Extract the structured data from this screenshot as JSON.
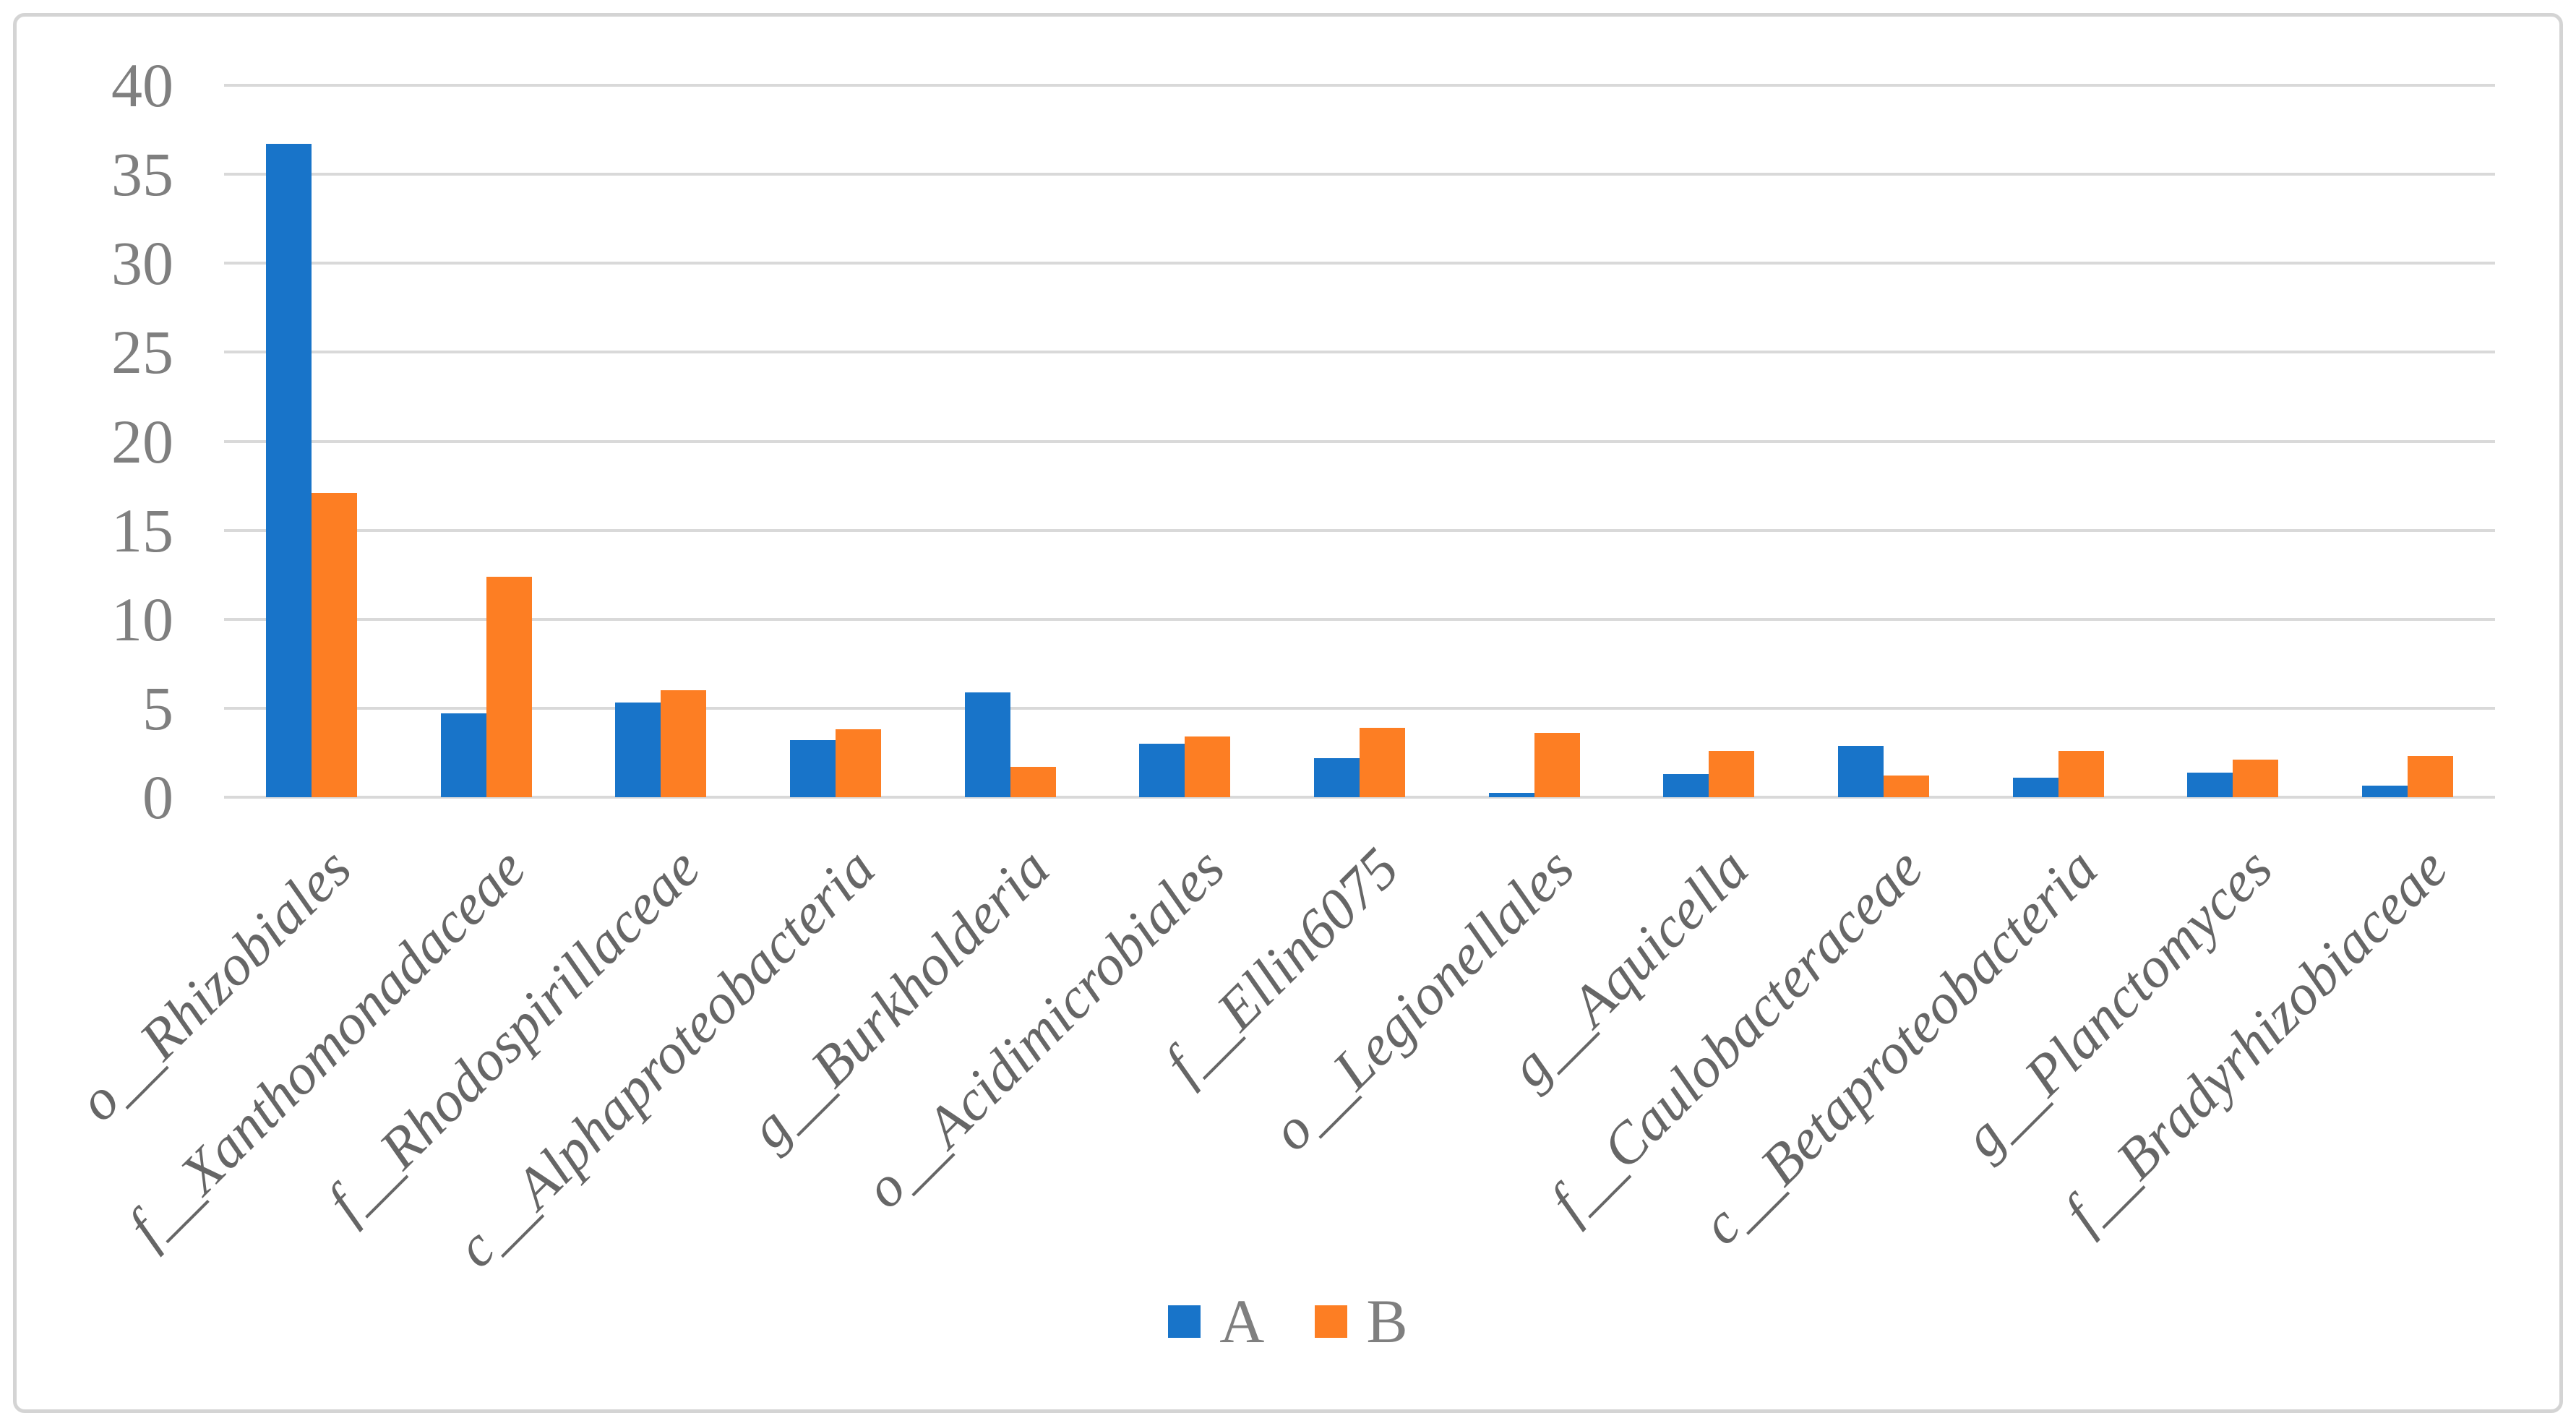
{
  "figure": {
    "background": "#ffffff",
    "border_color": "#d4d4d4"
  },
  "chart_data": {
    "type": "bar",
    "title": "",
    "xlabel": "",
    "ylabel": "",
    "ylim": [
      0,
      40
    ],
    "yticks": [
      0,
      5,
      10,
      15,
      20,
      25,
      30,
      35,
      40
    ],
    "grid": "horizontal",
    "gridline_color": "#d9d9d9",
    "tick_label_color": "#7f7f7f",
    "category_label_color": "#666666",
    "category_label_rotation_deg": 45,
    "legend_position": "bottom-center",
    "categories": [
      "o__Rhizobiales",
      "f__Xanthomonadaceae",
      "f__Rhodospirillaceae",
      "c__Alphaproteobacteria",
      "g__Burkholderia",
      "o__Acidimicrobiales",
      "f__Ellin6075",
      "o__Legionellales",
      "g__Aquicella",
      "f__Caulobacteraceae",
      "c__Betaproteobacteria",
      "g__Planctomyces",
      "f__Bradyrhizobiaceae"
    ],
    "series": [
      {
        "name": "A",
        "color": "#1874c9",
        "values": [
          36.7,
          4.7,
          5.3,
          3.2,
          5.9,
          3.0,
          2.2,
          0.25,
          1.3,
          2.9,
          1.1,
          1.4,
          0.65
        ]
      },
      {
        "name": "B",
        "color": "#fd7e23",
        "values": [
          17.1,
          12.4,
          6.0,
          3.8,
          1.7,
          3.4,
          3.9,
          3.6,
          2.6,
          1.2,
          2.6,
          2.1,
          2.3
        ]
      }
    ]
  }
}
